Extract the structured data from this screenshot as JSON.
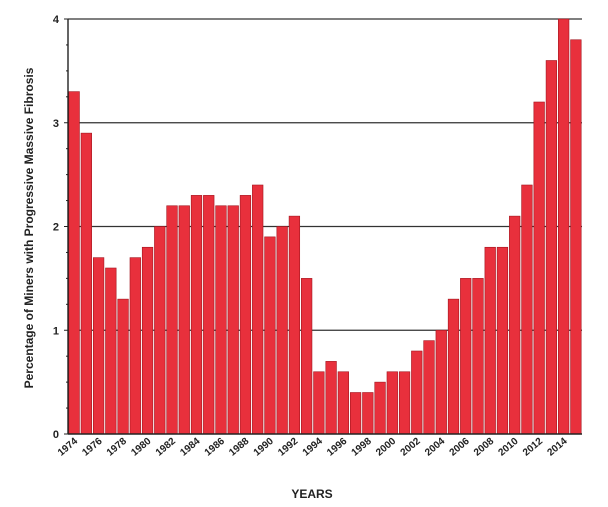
{
  "chart_data": {
    "type": "bar",
    "ylabel": "Percentage of Miners with Progressive Massive Fibrosis",
    "xlabel": "YEARS",
    "ylim": [
      0,
      4
    ],
    "yticks": [
      "0",
      "1",
      "2",
      "3",
      "4"
    ],
    "grid": "horizontal",
    "bar_color": "#e8303c",
    "bar_edge_color": "#a3141e",
    "categories": [
      "1974",
      "1975",
      "1976",
      "1977",
      "1978",
      "1979",
      "1980",
      "1981",
      "1982",
      "1983",
      "1984",
      "1985",
      "1986",
      "1987",
      "1988",
      "1989",
      "1990",
      "1991",
      "1992",
      "1993",
      "1994",
      "1995",
      "1996",
      "1997",
      "1998",
      "1999",
      "2000",
      "2001",
      "2002",
      "2003",
      "2004",
      "2005",
      "2006",
      "2007",
      "2008",
      "2009",
      "2010",
      "2011",
      "2012",
      "2013",
      "2014",
      "2015"
    ],
    "xtick_labels": [
      "1974",
      "",
      "1976",
      "",
      "1978",
      "",
      "1980",
      "",
      "1982",
      "",
      "1984",
      "",
      "1986",
      "",
      "1988",
      "",
      "1990",
      "",
      "1992",
      "",
      "1994",
      "",
      "1996",
      "",
      "1998",
      "",
      "2000",
      "",
      "2002",
      "",
      "2004",
      "",
      "2006",
      "",
      "2008",
      "",
      "2010",
      "",
      "2012",
      "",
      "2014",
      ""
    ],
    "values": [
      3.3,
      2.9,
      1.7,
      1.6,
      1.3,
      1.7,
      1.8,
      2.0,
      2.2,
      2.2,
      2.3,
      2.3,
      2.2,
      2.2,
      2.3,
      2.4,
      1.9,
      2.0,
      2.1,
      1.5,
      0.6,
      0.7,
      0.6,
      0.4,
      0.4,
      0.5,
      0.6,
      0.6,
      0.8,
      0.9,
      1.0,
      1.3,
      1.5,
      1.5,
      1.8,
      1.8,
      2.1,
      2.4,
      3.2,
      3.6,
      4.0,
      3.8
    ]
  }
}
